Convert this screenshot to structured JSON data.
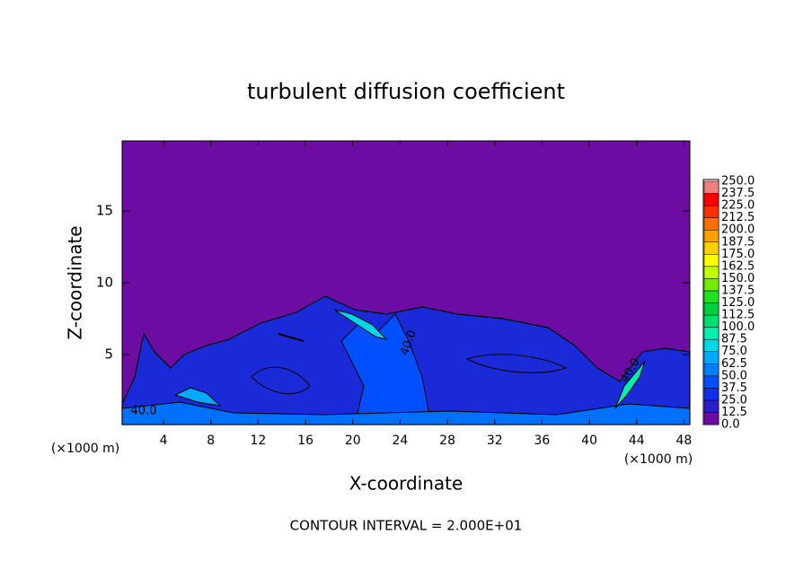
{
  "chart_data": {
    "type": "contour",
    "title": "turbulent diffusion coefficient",
    "xlabel": "X-coordinate",
    "ylabel": "Z-coordinate",
    "x_unit": "(×1000 m)",
    "footer": "CONTOUR INTERVAL = 2.000E+01",
    "xlim": [
      0.5,
      48.5
    ],
    "xticks": [
      4,
      8,
      12,
      16,
      20,
      24,
      28,
      32,
      36,
      40,
      44,
      48
    ],
    "ylim": [
      0.125,
      19.875
    ],
    "yticks": [
      5,
      10,
      15
    ],
    "contour_labels": [
      {
        "value": 40,
        "label": "40.0"
      },
      {
        "value": 40,
        "label": "40.0"
      },
      {
        "value": 40,
        "label": "40.0"
      }
    ],
    "colorbar": {
      "levels": [
        {
          "value": 0,
          "label": "0.0"
        },
        {
          "value": 12.5,
          "label": "12.5"
        },
        {
          "value": 25,
          "label": "25.0"
        },
        {
          "value": 37.5,
          "label": "37.5"
        },
        {
          "value": 50,
          "label": "50.0"
        },
        {
          "value": 62.5,
          "label": "62.5"
        },
        {
          "value": 75,
          "label": "75.0"
        },
        {
          "value": 87.5,
          "label": "87.5"
        },
        {
          "value": 100,
          "label": "100.0"
        },
        {
          "value": 112.5,
          "label": "112.5"
        },
        {
          "value": 125,
          "label": "125.0"
        },
        {
          "value": 137.5,
          "label": "137.5"
        },
        {
          "value": 150,
          "label": "150.0"
        },
        {
          "value": 162.5,
          "label": "162.5"
        },
        {
          "value": 175,
          "label": "175.0"
        },
        {
          "value": 187.5,
          "label": "187.5"
        },
        {
          "value": 200,
          "label": "200.0"
        },
        {
          "value": 212.5,
          "label": "212.5"
        },
        {
          "value": 225,
          "label": "225.0"
        },
        {
          "value": 237.5,
          "label": "237.5"
        },
        {
          "value": 250,
          "label": "250.0"
        }
      ],
      "colors": [
        "#6c0ca2",
        "#2a1cc8",
        "#1030e8",
        "#0050ff",
        "#0080ff",
        "#00aaff",
        "#00d8e8",
        "#00f0b0",
        "#00e070",
        "#00d040",
        "#20e020",
        "#70f000",
        "#c0ff00",
        "#ffff00",
        "#ffd000",
        "#ffa000",
        "#ff7000",
        "#ff3000",
        "#ff0000",
        "#f08080"
      ]
    }
  }
}
